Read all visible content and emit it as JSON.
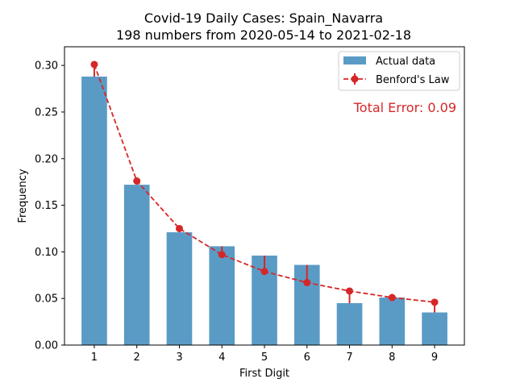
{
  "chart_data": {
    "type": "bar",
    "title": "Covid-19 Daily Cases: Spain_Navarra",
    "subtitle": "198 numbers from 2020-05-14 to 2021-02-18",
    "xlabel": "First Digit",
    "ylabel": "Frequency",
    "categories": [
      "1",
      "2",
      "3",
      "4",
      "5",
      "6",
      "7",
      "8",
      "9"
    ],
    "x": [
      1,
      2,
      3,
      4,
      5,
      6,
      7,
      8,
      9
    ],
    "ylim": [
      0,
      0.32
    ],
    "xlim": [
      0.3,
      9.7
    ],
    "yticks": [
      "0.00",
      "0.05",
      "0.10",
      "0.15",
      "0.20",
      "0.25",
      "0.30"
    ],
    "ytick_values": [
      0,
      0.05,
      0.1,
      0.15,
      0.2,
      0.25,
      0.3
    ],
    "grid": false,
    "legend_position": "top-right",
    "series": [
      {
        "name": "Actual data",
        "kind": "bar",
        "color": "#5a9bc6",
        "values": [
          0.288,
          0.172,
          0.121,
          0.106,
          0.096,
          0.086,
          0.045,
          0.051,
          0.035
        ]
      },
      {
        "name": "Benford's Law",
        "kind": "line-dashed-markers",
        "color": "#d62728",
        "values": [
          0.301,
          0.176,
          0.125,
          0.097,
          0.079,
          0.067,
          0.058,
          0.051,
          0.046
        ]
      }
    ],
    "annotation": {
      "text": "Total Error: 0.09",
      "color": "#d62728"
    }
  }
}
